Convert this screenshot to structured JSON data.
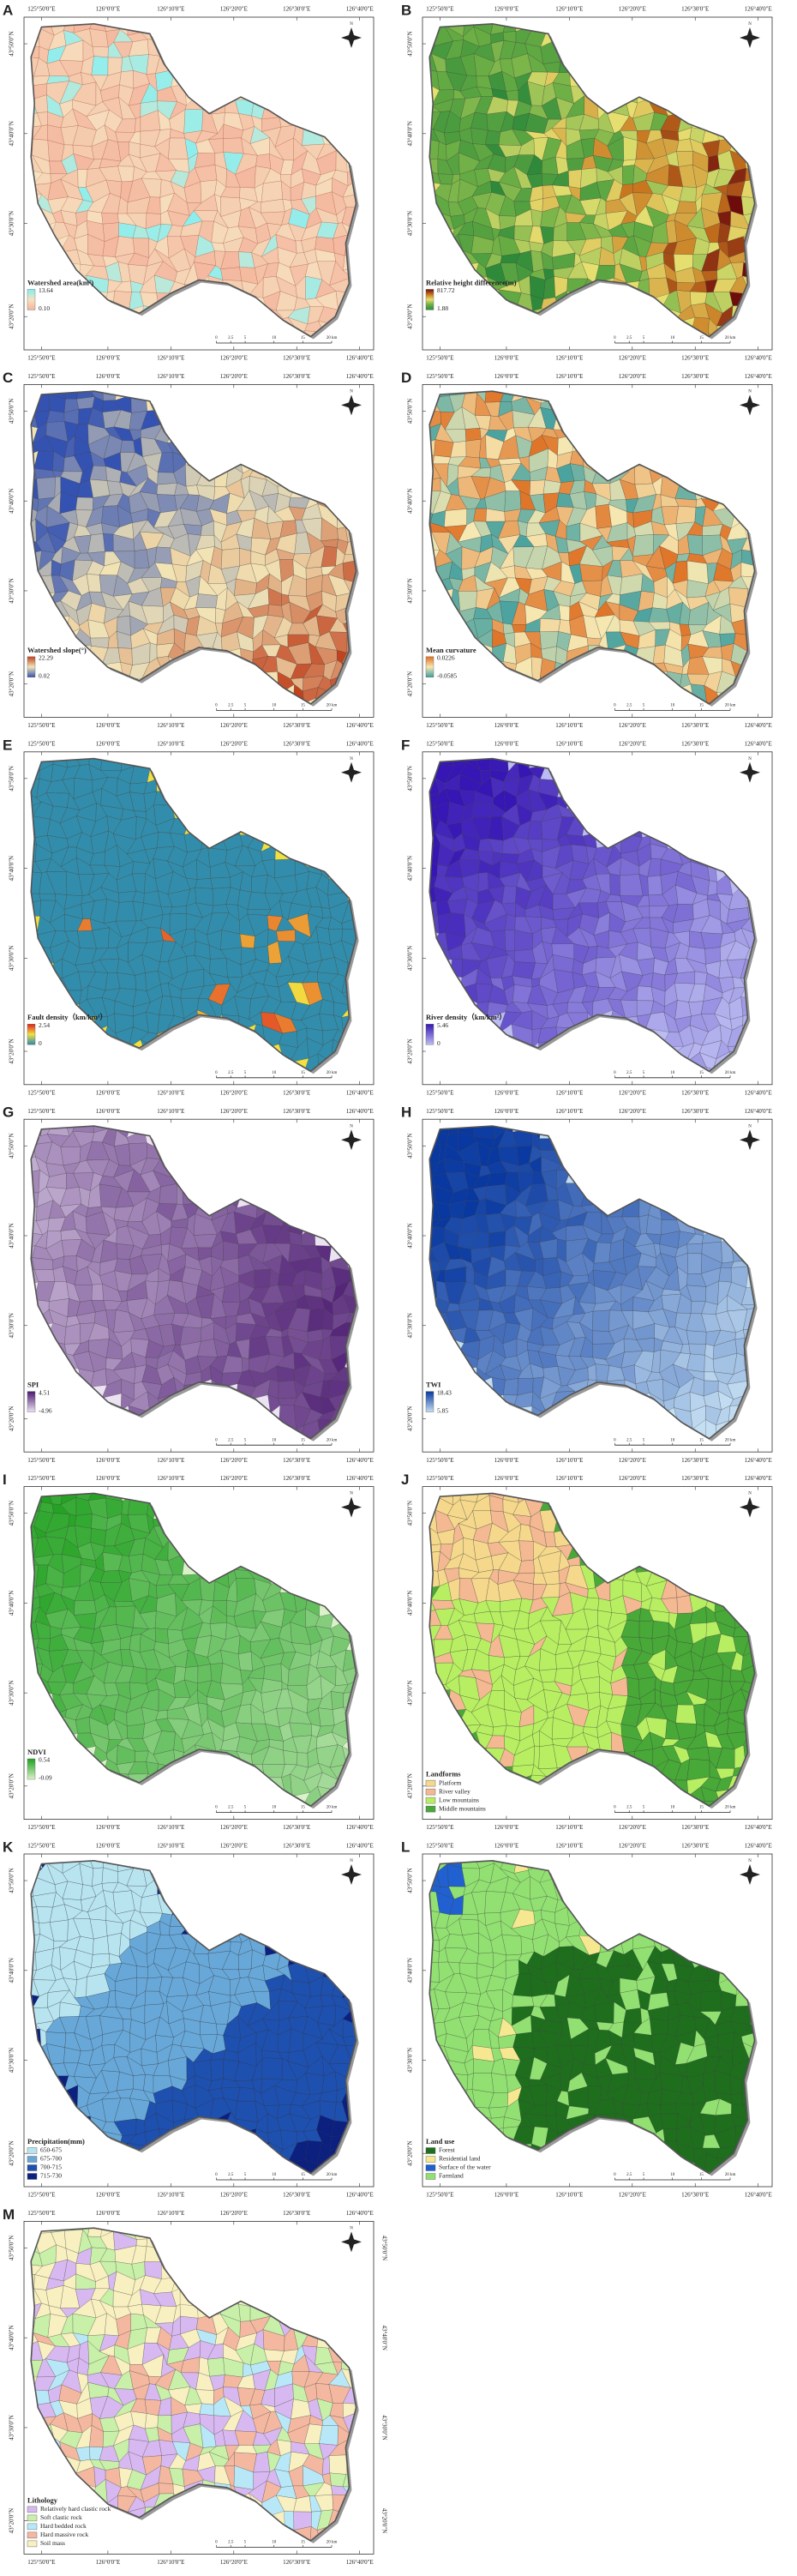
{
  "coordinates": {
    "longitudes": [
      "125°50'0\"E",
      "126°0'0\"E",
      "126°10'0\"E",
      "126°20'0\"E",
      "126°30'0\"E",
      "126°40'0\"E"
    ],
    "latitudes": [
      "43°50'0\"N",
      "43°40'0\"N",
      "43°30'0\"N",
      "43°20'0\"N"
    ]
  },
  "north_label": "N",
  "scale_bar": [
    "0",
    "2.5",
    "5",
    "10",
    "15",
    "20 km"
  ],
  "panels": [
    {
      "letter": "A",
      "legend": {
        "type": "gradient",
        "title": "Watershed area(km²)",
        "max": "13.64",
        "min": "0.10",
        "colors": [
          "#7ff0f4",
          "#f6e2c0",
          "#f4b49c"
        ]
      }
    },
    {
      "letter": "B",
      "legend": {
        "type": "gradient",
        "title": "Relative height difference(m)",
        "max": "817.72",
        "min": "1.88",
        "colors": [
          "#6e0c0c",
          "#c8761e",
          "#e6e070",
          "#6aae44",
          "#2e8a3a"
        ]
      }
    },
    {
      "letter": "C",
      "legend": {
        "type": "gradient",
        "title": "Watershed slope(°)",
        "max": "22.29",
        "min": "0.02",
        "colors": [
          "#c0421e",
          "#f2e4b6",
          "#3452b2"
        ]
      }
    },
    {
      "letter": "D",
      "legend": {
        "type": "gradient",
        "title": "Mean curvature",
        "max": "0.0226",
        "min": "-0.0585",
        "colors": [
          "#de6e20",
          "#f6e8b2",
          "#3e9e9e"
        ]
      }
    },
    {
      "letter": "E",
      "legend": {
        "type": "gradient",
        "title": "Fault density（km/km²）",
        "max": "2.54",
        "min": "0",
        "colors": [
          "#e01e1e",
          "#f2e040",
          "#2a8ab0"
        ]
      }
    },
    {
      "letter": "F",
      "legend": {
        "type": "gradient",
        "title": "River density（km/km²）",
        "max": "5.46",
        "min": "0",
        "colors": [
          "#3616b4",
          "#bcbcf2"
        ]
      }
    },
    {
      "letter": "G",
      "legend": {
        "type": "gradient",
        "title": "SPI",
        "max": "4.51",
        "min": "-4.96",
        "colors": [
          "#4a1870",
          "#ebe2f2"
        ]
      }
    },
    {
      "letter": "H",
      "legend": {
        "type": "gradient",
        "title": "TWI",
        "max": "18.43",
        "min": "5.85",
        "colors": [
          "#0838a0",
          "#c4def2"
        ]
      }
    },
    {
      "letter": "I",
      "legend": {
        "type": "gradient",
        "title": "NDVI",
        "max": "0.54",
        "min": "-0.09",
        "colors": [
          "#1ea01e",
          "#daf2ca"
        ]
      }
    },
    {
      "letter": "J",
      "legend": {
        "type": "categorical",
        "title": "Landforms",
        "items": [
          {
            "label": "Platform",
            "color": "#f5d88c"
          },
          {
            "label": "River valley",
            "color": "#f4b892"
          },
          {
            "label": "Low mountains",
            "color": "#b8ee62"
          },
          {
            "label": "Middle mountains",
            "color": "#48a838"
          }
        ]
      }
    },
    {
      "letter": "K",
      "legend": {
        "type": "categorical",
        "title": "Precipitation(mm)",
        "items": [
          {
            "label": "650-675",
            "color": "#b8e4f0"
          },
          {
            "label": "675-700",
            "color": "#68a8d8"
          },
          {
            "label": "700-715",
            "color": "#1e50b0"
          },
          {
            "label": "715-730",
            "color": "#0c2080"
          }
        ]
      }
    },
    {
      "letter": "L",
      "legend": {
        "type": "categorical",
        "title": "Land use",
        "items": [
          {
            "label": "Forest",
            "color": "#1e6e1e"
          },
          {
            "label": "Residential land",
            "color": "#f5e890"
          },
          {
            "label": "Surface of the water",
            "color": "#2060d0"
          },
          {
            "label": "Farmland",
            "color": "#92e072"
          }
        ]
      }
    },
    {
      "letter": "M",
      "legend": {
        "type": "categorical",
        "title": "Lithology",
        "items": [
          {
            "label": "Relatively hard clastic rock",
            "color": "#d8b8f0"
          },
          {
            "label": "Soft clastic rock",
            "color": "#c8f0a8"
          },
          {
            "label": "Hard bedded rock",
            "color": "#b8e8f8"
          },
          {
            "label": "Hard massive rock",
            "color": "#f4b8a0"
          },
          {
            "label": "Soil mass",
            "color": "#f8f0c0"
          }
        ]
      }
    }
  ]
}
